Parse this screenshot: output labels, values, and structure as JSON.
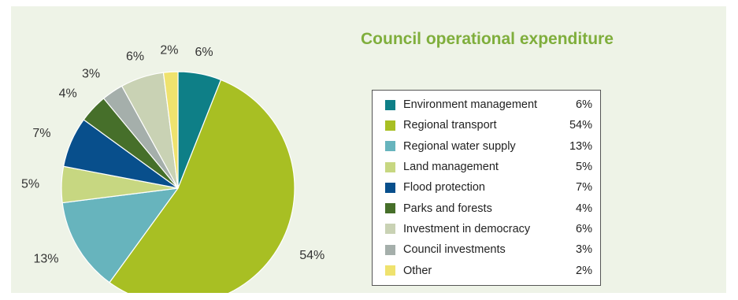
{
  "chart_data": {
    "type": "pie",
    "title": "Council operational expenditure",
    "categories": [
      "Environment management",
      "Regional transport",
      "Regional water supply",
      "Land management",
      "Flood protection",
      "Parks and forests",
      "Investment in democracy",
      "Council investments",
      "Other"
    ],
    "values": [
      6,
      54,
      13,
      5,
      7,
      4,
      6,
      3,
      2
    ],
    "value_labels": [
      "6%",
      "54%",
      "13%",
      "5%",
      "7%",
      "4%",
      "6%",
      "3%",
      "2%"
    ],
    "pie_order": [
      0,
      1,
      2,
      3,
      4,
      5,
      7,
      6,
      8
    ],
    "pie_start": "12 o'clock, clockwise",
    "colors": [
      "#0e7f87",
      "#a8bf23",
      "#67b4bd",
      "#c7d781",
      "#084f8c",
      "#466f2a",
      "#c9d2b4",
      "#a5afab",
      "#efe26e"
    ],
    "legend_placement": "right",
    "background": "#eef3e7"
  }
}
